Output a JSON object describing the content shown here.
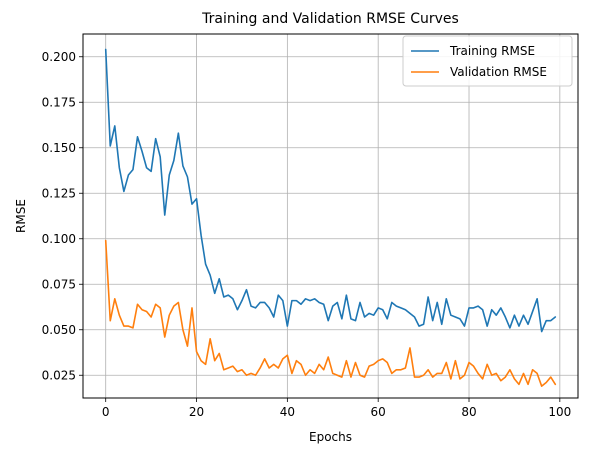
{
  "chart_data": {
    "type": "line",
    "title": "Training and Validation RMSE Curves",
    "xlabel": "Epochs",
    "ylabel": "RMSE",
    "xlim": [
      -5,
      104
    ],
    "ylim": [
      0.0125,
      0.2125
    ],
    "xticks": [
      0,
      20,
      40,
      60,
      80,
      100
    ],
    "xtick_labels": [
      "0",
      "20",
      "40",
      "60",
      "80",
      "100"
    ],
    "yticks": [
      0.025,
      0.05,
      0.075,
      0.1,
      0.125,
      0.15,
      0.175,
      0.2
    ],
    "ytick_labels": [
      "0.025",
      "0.050",
      "0.075",
      "0.100",
      "0.125",
      "0.150",
      "0.175",
      "0.200"
    ],
    "grid": true,
    "legend_position": "top-right",
    "x": [
      0,
      1,
      2,
      3,
      4,
      5,
      6,
      7,
      8,
      9,
      10,
      11,
      12,
      13,
      14,
      15,
      16,
      17,
      18,
      19,
      20,
      21,
      22,
      23,
      24,
      25,
      26,
      27,
      28,
      29,
      30,
      31,
      32,
      33,
      34,
      35,
      36,
      37,
      38,
      39,
      40,
      41,
      42,
      43,
      44,
      45,
      46,
      47,
      48,
      49,
      50,
      51,
      52,
      53,
      54,
      55,
      56,
      57,
      58,
      59,
      60,
      61,
      62,
      63,
      64,
      65,
      66,
      67,
      68,
      69,
      70,
      71,
      72,
      73,
      74,
      75,
      76,
      77,
      78,
      79,
      80,
      81,
      82,
      83,
      84,
      85,
      86,
      87,
      88,
      89,
      90,
      91,
      92,
      93,
      94,
      95,
      96,
      97,
      98,
      99
    ],
    "series": [
      {
        "name": "Training RMSE",
        "color": "#1f77b4",
        "values": [
          0.204,
          0.151,
          0.162,
          0.139,
          0.126,
          0.135,
          0.138,
          0.156,
          0.148,
          0.139,
          0.137,
          0.155,
          0.145,
          0.113,
          0.135,
          0.143,
          0.158,
          0.14,
          0.134,
          0.119,
          0.122,
          0.102,
          0.086,
          0.08,
          0.07,
          0.078,
          0.068,
          0.069,
          0.067,
          0.061,
          0.066,
          0.072,
          0.063,
          0.062,
          0.065,
          0.065,
          0.062,
          0.057,
          0.069,
          0.066,
          0.052,
          0.066,
          0.066,
          0.064,
          0.067,
          0.066,
          0.067,
          0.065,
          0.064,
          0.055,
          0.063,
          0.065,
          0.056,
          0.069,
          0.056,
          0.055,
          0.065,
          0.057,
          0.059,
          0.058,
          0.062,
          0.061,
          0.056,
          0.065,
          0.063,
          0.062,
          0.061,
          0.059,
          0.057,
          0.052,
          0.053,
          0.068,
          0.055,
          0.065,
          0.053,
          0.067,
          0.058,
          0.057,
          0.056,
          0.052,
          0.062,
          0.062,
          0.063,
          0.061,
          0.052,
          0.061,
          0.058,
          0.062,
          0.057,
          0.051,
          0.058,
          0.052,
          0.058,
          0.053,
          0.06,
          0.067,
          0.049,
          0.055,
          0.055,
          0.057
        ]
      },
      {
        "name": "Validation RMSE",
        "color": "#ff7f0e",
        "values": [
          0.099,
          0.055,
          0.067,
          0.058,
          0.052,
          0.052,
          0.051,
          0.064,
          0.061,
          0.06,
          0.057,
          0.064,
          0.062,
          0.046,
          0.058,
          0.063,
          0.065,
          0.05,
          0.041,
          0.062,
          0.038,
          0.033,
          0.031,
          0.045,
          0.033,
          0.037,
          0.028,
          0.029,
          0.03,
          0.027,
          0.028,
          0.025,
          0.026,
          0.025,
          0.029,
          0.034,
          0.029,
          0.031,
          0.029,
          0.034,
          0.036,
          0.026,
          0.033,
          0.031,
          0.025,
          0.028,
          0.026,
          0.031,
          0.028,
          0.035,
          0.026,
          0.025,
          0.024,
          0.033,
          0.024,
          0.032,
          0.025,
          0.024,
          0.03,
          0.031,
          0.033,
          0.034,
          0.032,
          0.026,
          0.028,
          0.028,
          0.029,
          0.04,
          0.024,
          0.024,
          0.025,
          0.028,
          0.024,
          0.026,
          0.026,
          0.032,
          0.023,
          0.033,
          0.023,
          0.025,
          0.032,
          0.03,
          0.026,
          0.023,
          0.031,
          0.025,
          0.026,
          0.022,
          0.024,
          0.028,
          0.023,
          0.02,
          0.026,
          0.02,
          0.028,
          0.026,
          0.019,
          0.021,
          0.024,
          0.02
        ]
      }
    ]
  }
}
